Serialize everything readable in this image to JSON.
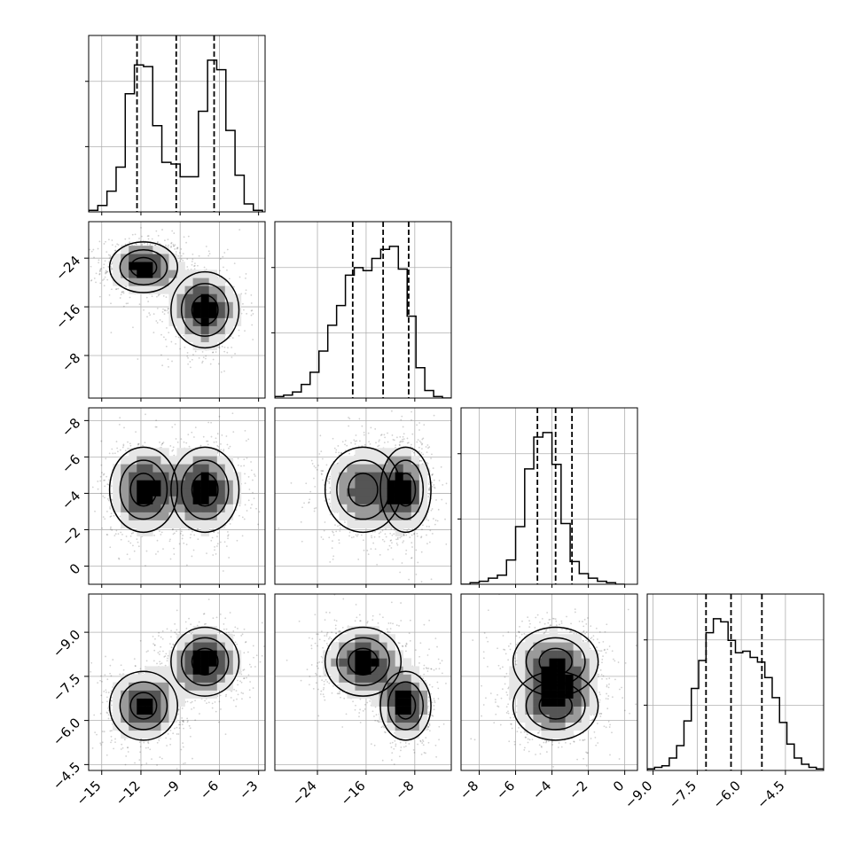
{
  "chart_data": {
    "type": "corner",
    "description_free": true,
    "grid": true,
    "params": [
      {
        "range": [
          -16,
          -2.5
        ],
        "ticks": [
          -15,
          -12,
          -9,
          -6,
          -3
        ],
        "quantiles": [
          -12.3,
          -9.3,
          -6.4
        ]
      },
      {
        "range": [
          -31,
          -2
        ],
        "ticks": [
          -24,
          -16,
          -8
        ],
        "quantiles": [
          -18.2,
          -13.2,
          -9.0
        ]
      },
      {
        "range": [
          -9,
          0.7
        ],
        "ticks": [
          -8,
          -6,
          -4,
          -2,
          0
        ],
        "quantiles": [
          -4.8,
          -3.8,
          -2.9
        ]
      },
      {
        "range": [
          -9.2,
          -3.2
        ],
        "ticks": [
          -9.0,
          -7.5,
          -6.0,
          -4.5
        ],
        "quantiles": [
          -7.2,
          -6.35,
          -5.3
        ]
      }
    ],
    "tick_labels": {
      "x": [
        [
          "−15",
          "−12",
          "−9",
          "−6",
          "−3"
        ],
        [
          "−24",
          "−16",
          "−8"
        ],
        [
          "−8",
          "−6",
          "−4",
          "−2",
          "0"
        ],
        [
          "−9.0",
          "−7.5",
          "−6.0",
          "−4.5"
        ]
      ],
      "y": [
        [],
        [
          "−8",
          "−16",
          "−24"
        ],
        [
          "0",
          "−2",
          "−4",
          "−6",
          "−8"
        ],
        [
          "−4.5",
          "−6.0",
          "−7.5",
          "−9.0"
        ]
      ]
    },
    "histograms": [
      {
        "edges": [
          -16,
          -15.3,
          -14.6,
          -13.9,
          -13.2,
          -12.5,
          -11.8,
          -11.1,
          -10.4,
          -9.7,
          -9.0,
          -8.3,
          -7.6,
          -6.9,
          -6.2,
          -5.5,
          -4.8,
          -4.1,
          -3.4,
          -2.7
        ],
        "counts": [
          1,
          4,
          13,
          28,
          74,
          92,
          91,
          54,
          31,
          30,
          22,
          22,
          63,
          95,
          89,
          51,
          23,
          5,
          1
        ]
      },
      {
        "edges": [
          -31,
          -29.55,
          -28.1,
          -26.65,
          -25.2,
          -23.75,
          -22.3,
          -20.85,
          -19.4,
          -17.95,
          -16.5,
          -15.05,
          -13.6,
          -12.15,
          -10.7,
          -9.25,
          -7.8,
          -6.35,
          -4.9,
          -3.45,
          -2.0
        ],
        "counts": [
          1,
          2,
          4,
          9,
          17,
          31,
          48,
          61,
          81,
          86,
          84,
          92,
          98,
          100,
          85,
          54,
          20,
          5,
          1,
          0
        ]
      },
      {
        "edges": [
          -9.0,
          -8.5,
          -8.0,
          -7.5,
          -7.0,
          -6.5,
          -6.0,
          -5.5,
          -5.0,
          -4.5,
          -4.0,
          -3.5,
          -3.0,
          -2.5,
          -2.0,
          -1.5,
          -1.0,
          -0.5,
          0.0
        ],
        "counts": [
          0,
          1,
          2,
          4,
          6,
          16,
          38,
          76,
          97,
          100,
          79,
          40,
          15,
          7,
          4,
          2,
          1,
          0
        ]
      },
      {
        "edges": [
          -9.2,
          -8.95,
          -8.7,
          -8.45,
          -8.2,
          -7.95,
          -7.7,
          -7.45,
          -7.2,
          -6.95,
          -6.7,
          -6.45,
          -6.2,
          -5.95,
          -5.7,
          -5.45,
          -5.2,
          -4.95,
          -4.7,
          -4.45,
          -4.2,
          -3.95,
          -3.7,
          -3.45,
          -3.2
        ],
        "counts": [
          1,
          2,
          3,
          8,
          16,
          32,
          53,
          71,
          89,
          98,
          96,
          84,
          76,
          77,
          73,
          70,
          60,
          47,
          31,
          17,
          8,
          4,
          2,
          1
        ]
      }
    ],
    "modes": [
      {
        "mean": [
          -11.8,
          -9.5,
          -3.8,
          -7.0
        ],
        "sd": [
          1.0,
          1.6,
          0.9,
          0.45
        ],
        "weight": 0.5
      },
      {
        "mean": [
          -7.1,
          -16.5,
          -3.8,
          -5.5
        ],
        "sd": [
          1.0,
          2.4,
          0.9,
          0.45
        ],
        "weight": 0.5
      }
    ]
  }
}
